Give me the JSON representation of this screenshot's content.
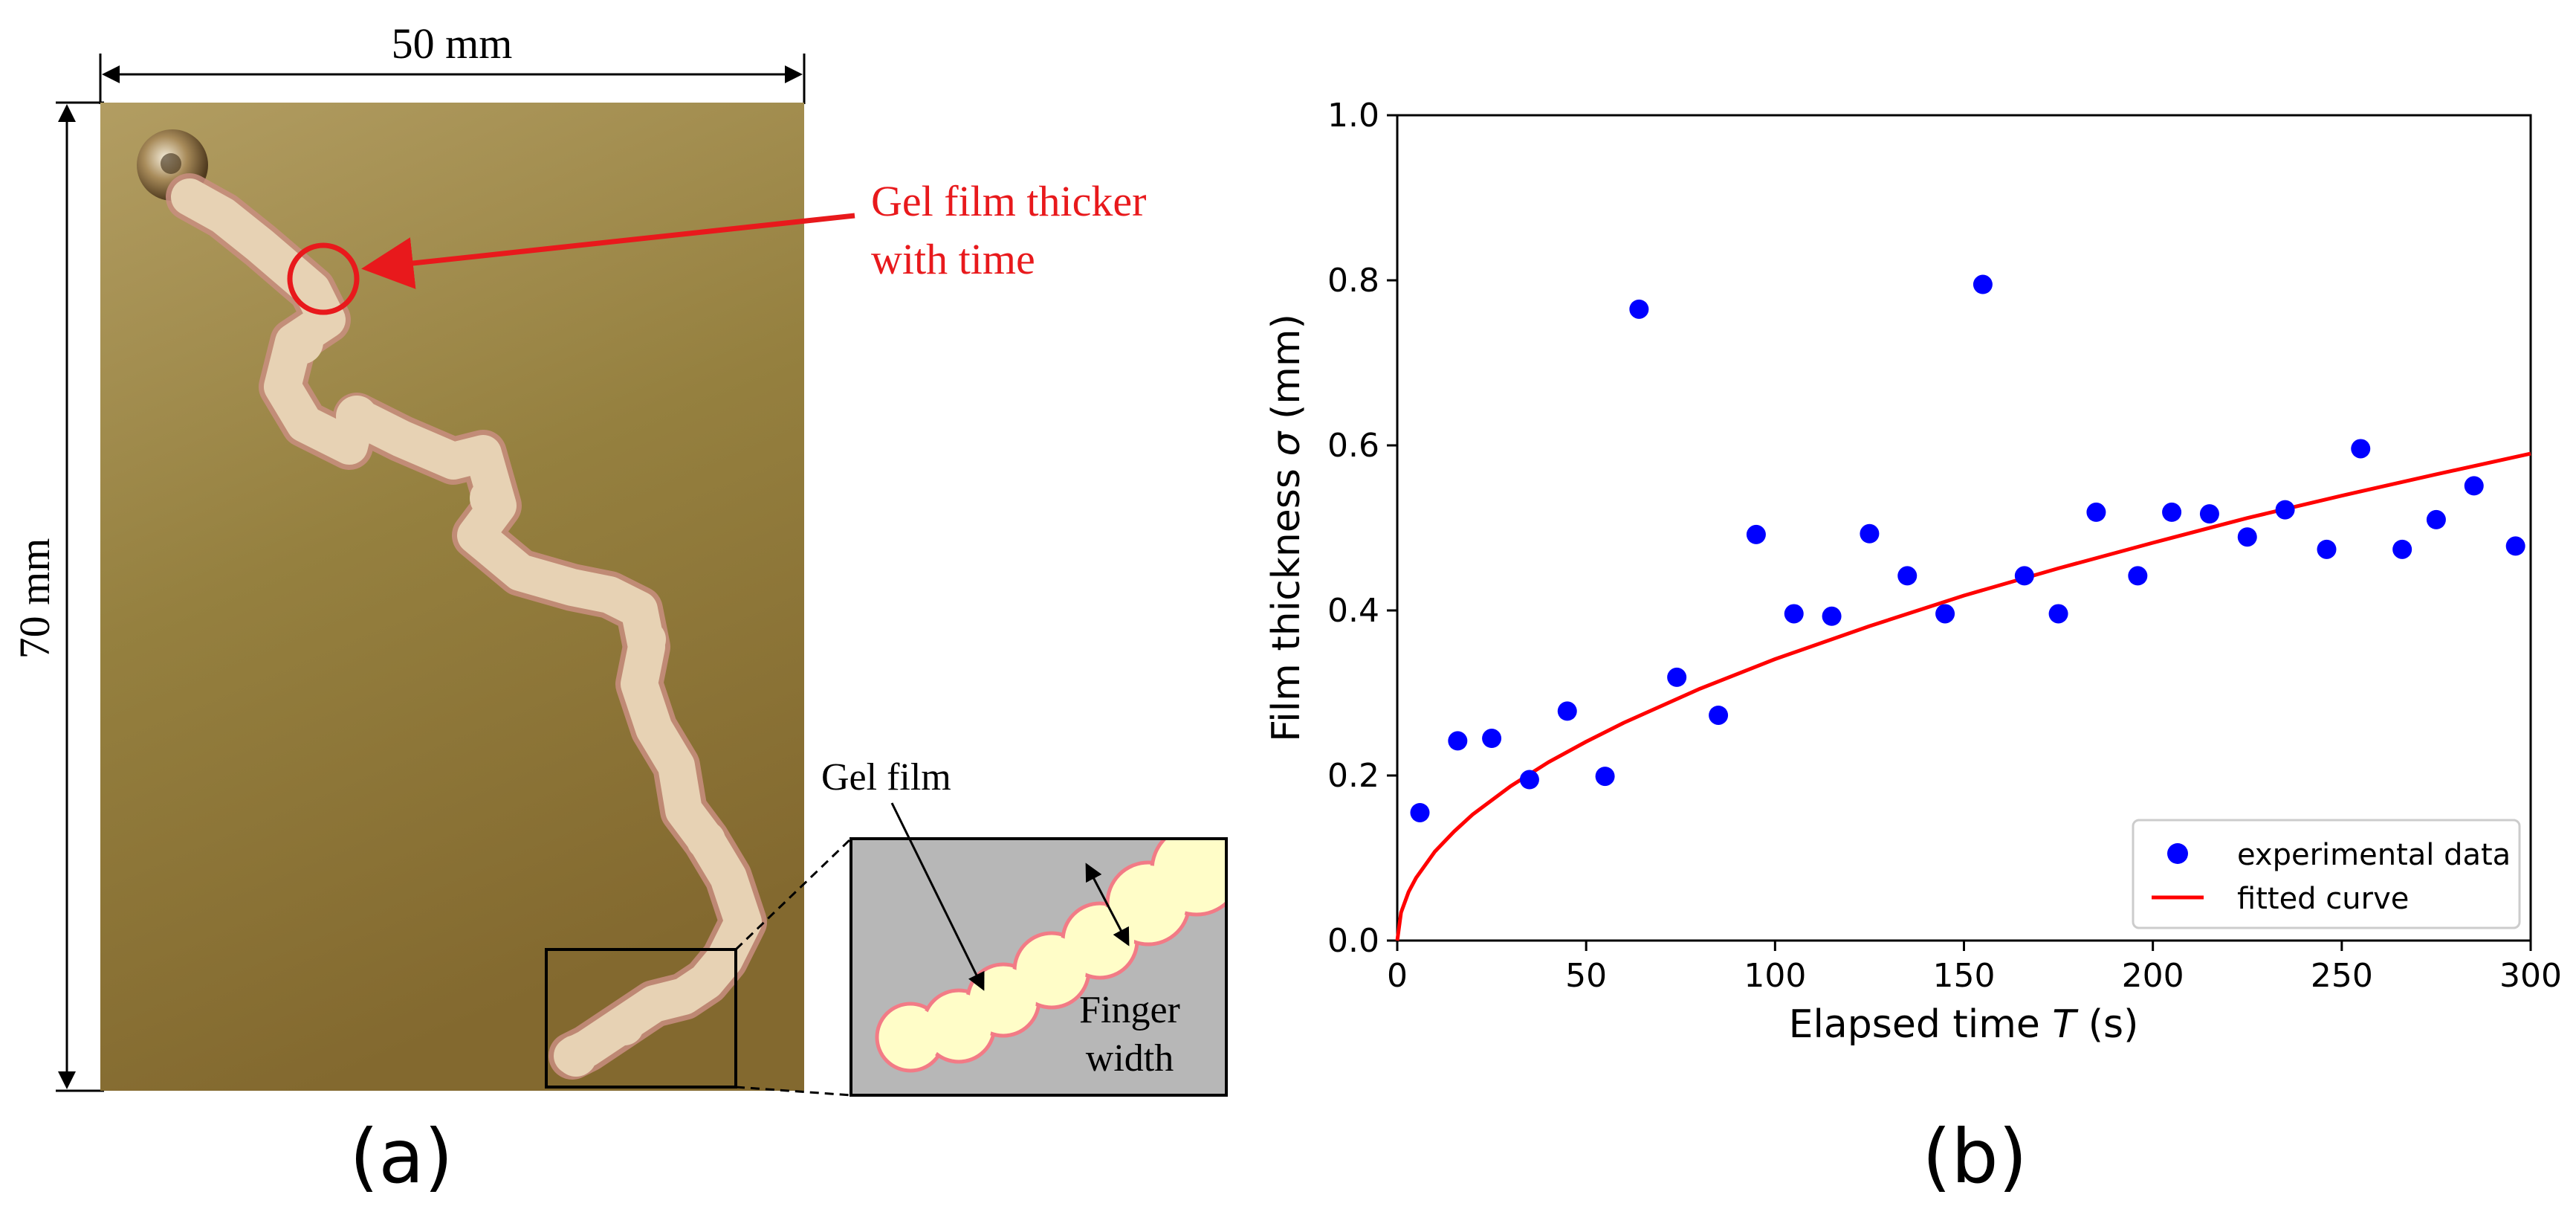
{
  "panel_a": {
    "width_label": "50 mm",
    "height_label": "70 mm",
    "annotation_line1": "Gel film thicker",
    "annotation_line2": "with time",
    "inset_gel_label": "Gel film",
    "inset_width_line1": "Finger",
    "inset_width_line2": "width",
    "panel_label": "(a)",
    "colors": {
      "annotation": "#e8191c",
      "plate": "#8f7a3e",
      "finger": "#e7d2b4",
      "inset_bg": "#b7b7b7",
      "inset_finger": "#fffdc8",
      "inset_edge": "#f27b86"
    }
  },
  "panel_b": {
    "panel_label": "(b)",
    "chart_data": {
      "type": "scatter",
      "xlabel_prefix": "Elapsed time ",
      "xlabel_var": "T",
      "xlabel_suffix": " (s)",
      "ylabel_prefix": "Film thickness ",
      "ylabel_var": "σ",
      "ylabel_suffix": " (mm)",
      "xlim": [
        0,
        300
      ],
      "ylim": [
        0,
        1.0
      ],
      "xticks": [
        0,
        50,
        100,
        150,
        200,
        250,
        300
      ],
      "yticks": [
        0.0,
        0.2,
        0.4,
        0.6,
        0.8,
        1.0
      ],
      "ytick_labels": [
        "0.0",
        "0.2",
        "0.4",
        "0.6",
        "0.8",
        "1.0"
      ],
      "grid": false,
      "legend_position": "lower-right",
      "series": [
        {
          "name": "experimental data",
          "kind": "scatter",
          "color": "#0000ff",
          "x": [
            6,
            16,
            25,
            35,
            45,
            55,
            64,
            74,
            85,
            95,
            105,
            115,
            125,
            135,
            145,
            155,
            166,
            175,
            185,
            196,
            205,
            215,
            225,
            235,
            246,
            255,
            266,
            275,
            285,
            296
          ],
          "y": [
            0.155,
            0.242,
            0.245,
            0.195,
            0.278,
            0.199,
            0.765,
            0.319,
            0.273,
            0.492,
            0.396,
            0.393,
            0.493,
            0.442,
            0.396,
            0.795,
            0.442,
            0.396,
            0.519,
            0.442,
            0.519,
            0.517,
            0.489,
            0.522,
            0.474,
            0.596,
            0.474,
            0.51,
            0.551,
            0.478
          ]
        },
        {
          "name": "fitted curve",
          "kind": "line",
          "color": "#ff0000",
          "x": [
            0,
            1,
            3,
            5,
            10,
            15,
            20,
            30,
            40,
            50,
            60,
            80,
            100,
            125,
            150,
            175,
            200,
            225,
            250,
            275,
            300
          ],
          "y": [
            0.0,
            0.034,
            0.059,
            0.076,
            0.108,
            0.132,
            0.153,
            0.187,
            0.216,
            0.241,
            0.264,
            0.305,
            0.341,
            0.381,
            0.418,
            0.451,
            0.482,
            0.512,
            0.539,
            0.565,
            0.59
          ]
        }
      ]
    }
  }
}
